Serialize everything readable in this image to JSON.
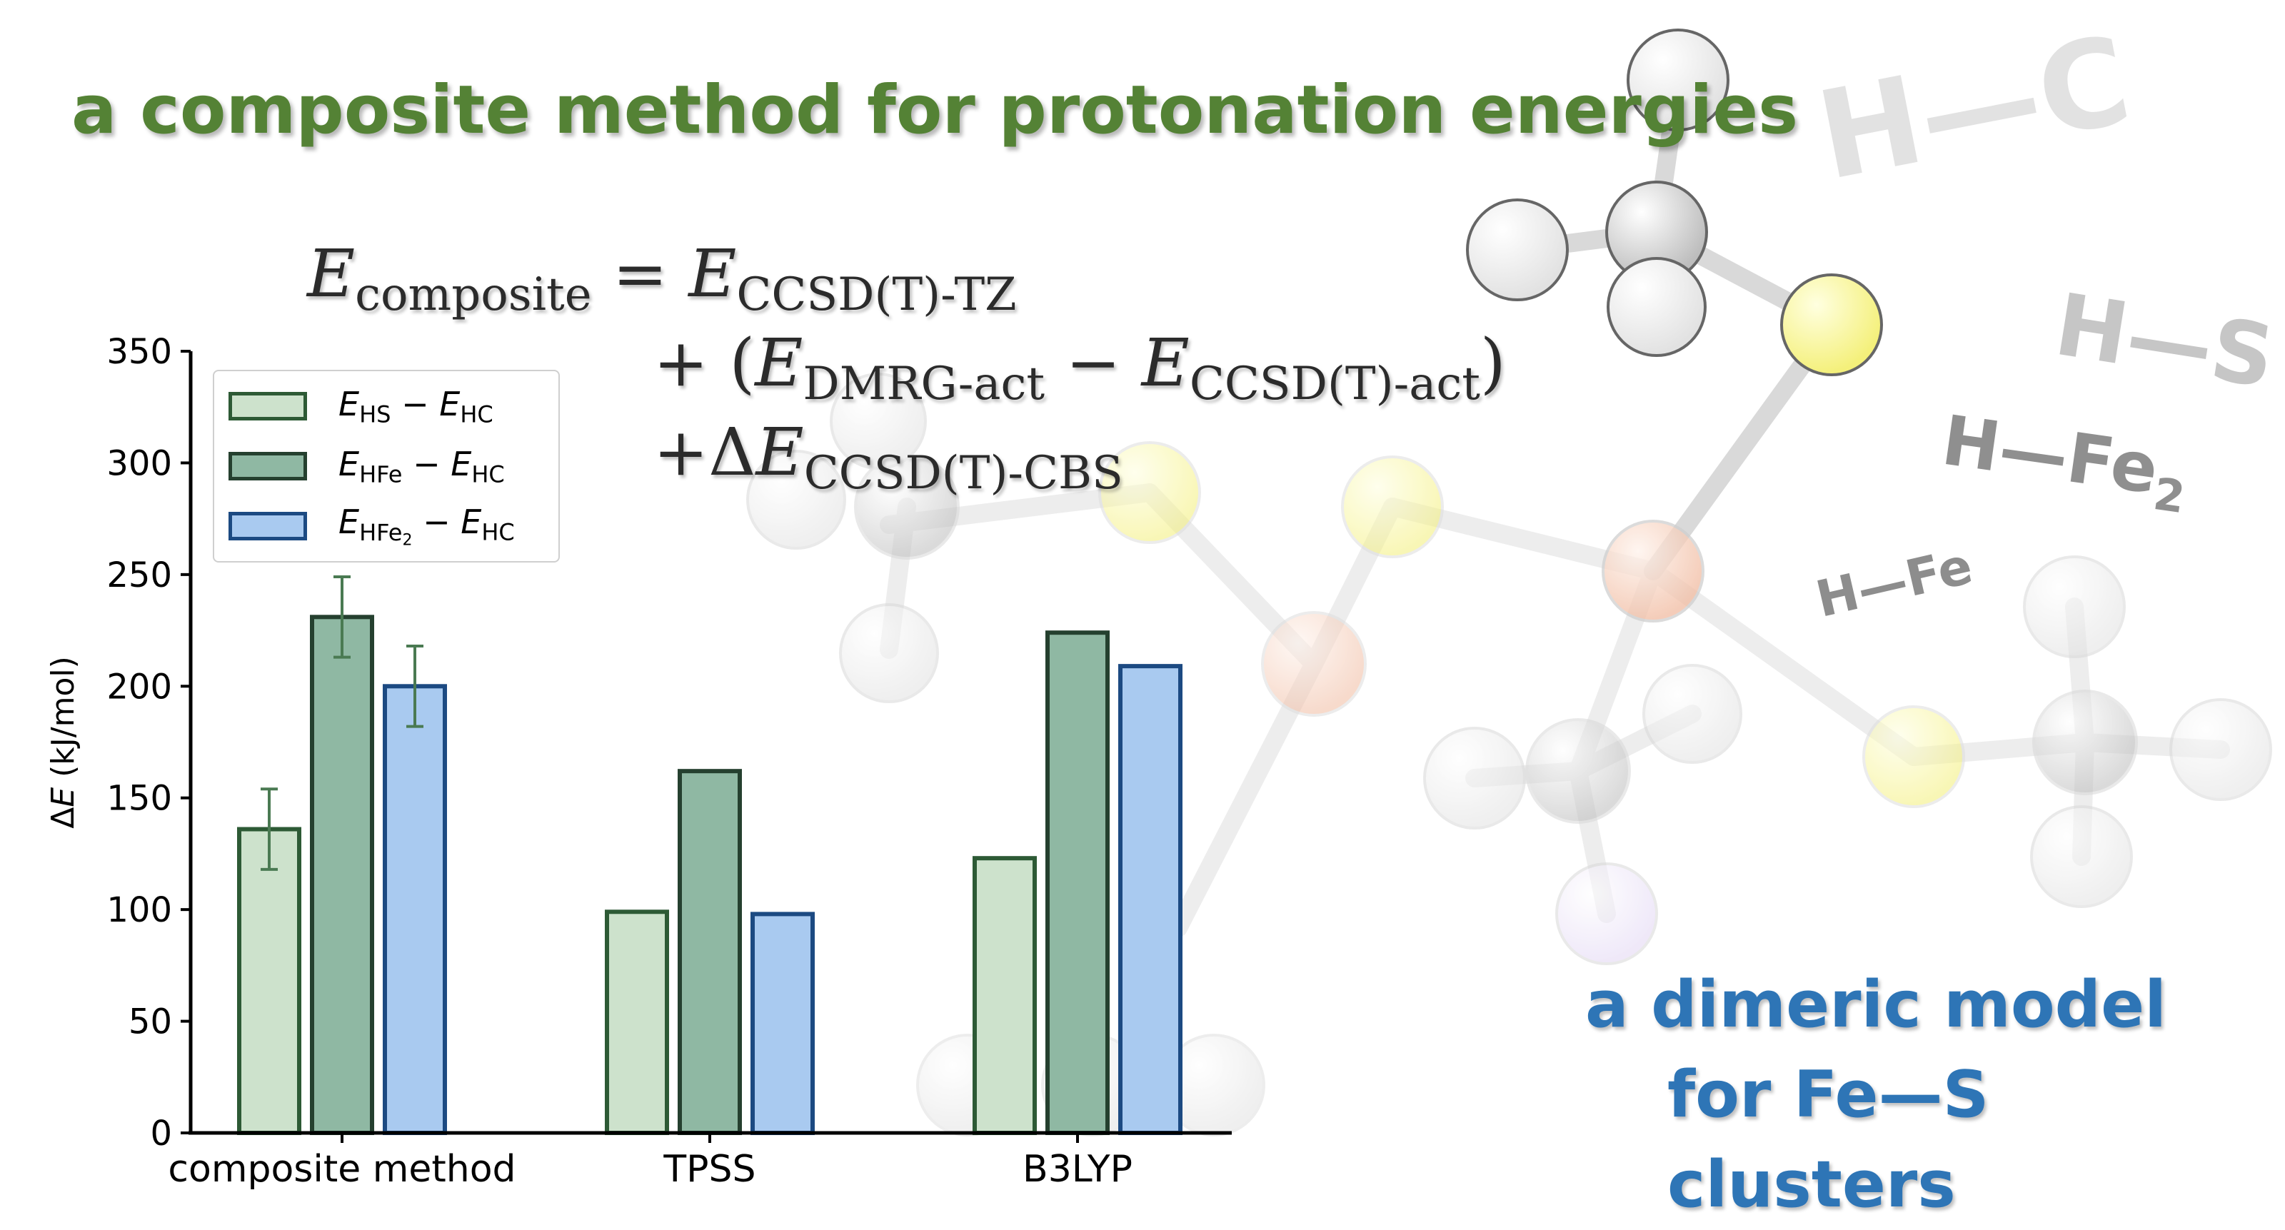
{
  "title": "a composite method for protonation energies",
  "formula": {
    "line1": {
      "lhs": "E",
      "lhs_sub": "composite",
      "eq": " = ",
      "term": "E",
      "term_sub": "CCSD(T)-TZ"
    },
    "line2": {
      "pre": "+ (",
      "a": "E",
      "a_sub": "DMRG-act",
      "minus": " − ",
      "b": "E",
      "b_sub": "CCSD(T)-act",
      "post": ")"
    },
    "line3": {
      "pre": "+Δ",
      "a": "E",
      "a_sub": "CCSD(T)-CBS"
    }
  },
  "molecule_labels": {
    "hc": "H—C",
    "hs": "H—S",
    "hfe2_main": "H—Fe",
    "hfe2_sub": "2",
    "hfe": "H—Fe"
  },
  "tagline": {
    "line1": "a dimeric model",
    "line2": "for Fe—S clusters"
  },
  "colors": {
    "title": "#548235",
    "tagline": "#2e75b6",
    "series_fill": [
      "#cde2cc",
      "#8fb8a3",
      "#a9caf0"
    ],
    "series_edge": [
      "#2d5a35",
      "#25402f",
      "#1c4a82"
    ],
    "error_bar": "#4a7a52"
  },
  "legend": {
    "placement": "top-left",
    "items": [
      {
        "e1": "E",
        "s1": "HS",
        "s1b": "",
        "op": " − ",
        "e2": "E",
        "s2": "HC"
      },
      {
        "e1": "E",
        "s1": "HFe",
        "s1b": "",
        "op": " − ",
        "e2": "E",
        "s2": "HC"
      },
      {
        "e1": "E",
        "s1": "HFe",
        "s1b": "2",
        "op": " − ",
        "e2": "E",
        "s2": "HC"
      }
    ]
  },
  "chart_data": {
    "type": "bar",
    "categories": [
      "composite method",
      "TPSS",
      "B3LYP"
    ],
    "series": [
      {
        "values": [
          136,
          99,
          123
        ],
        "errors": [
          18,
          null,
          null
        ]
      },
      {
        "values": [
          231,
          162,
          224
        ],
        "errors": [
          18,
          null,
          null
        ]
      },
      {
        "values": [
          200,
          98,
          209
        ],
        "errors": [
          18,
          null,
          null
        ]
      }
    ],
    "ylabel": "ΔE (kJ/mol)",
    "ylabel_prefix": "Δ",
    "ylabel_var": "E",
    "ylabel_unit": " (kJ/mol)",
    "ylim": [
      0,
      350
    ],
    "yticks": [
      0,
      50,
      100,
      150,
      200,
      250,
      300,
      350
    ],
    "grid": false,
    "legend_placement": "top-left"
  }
}
